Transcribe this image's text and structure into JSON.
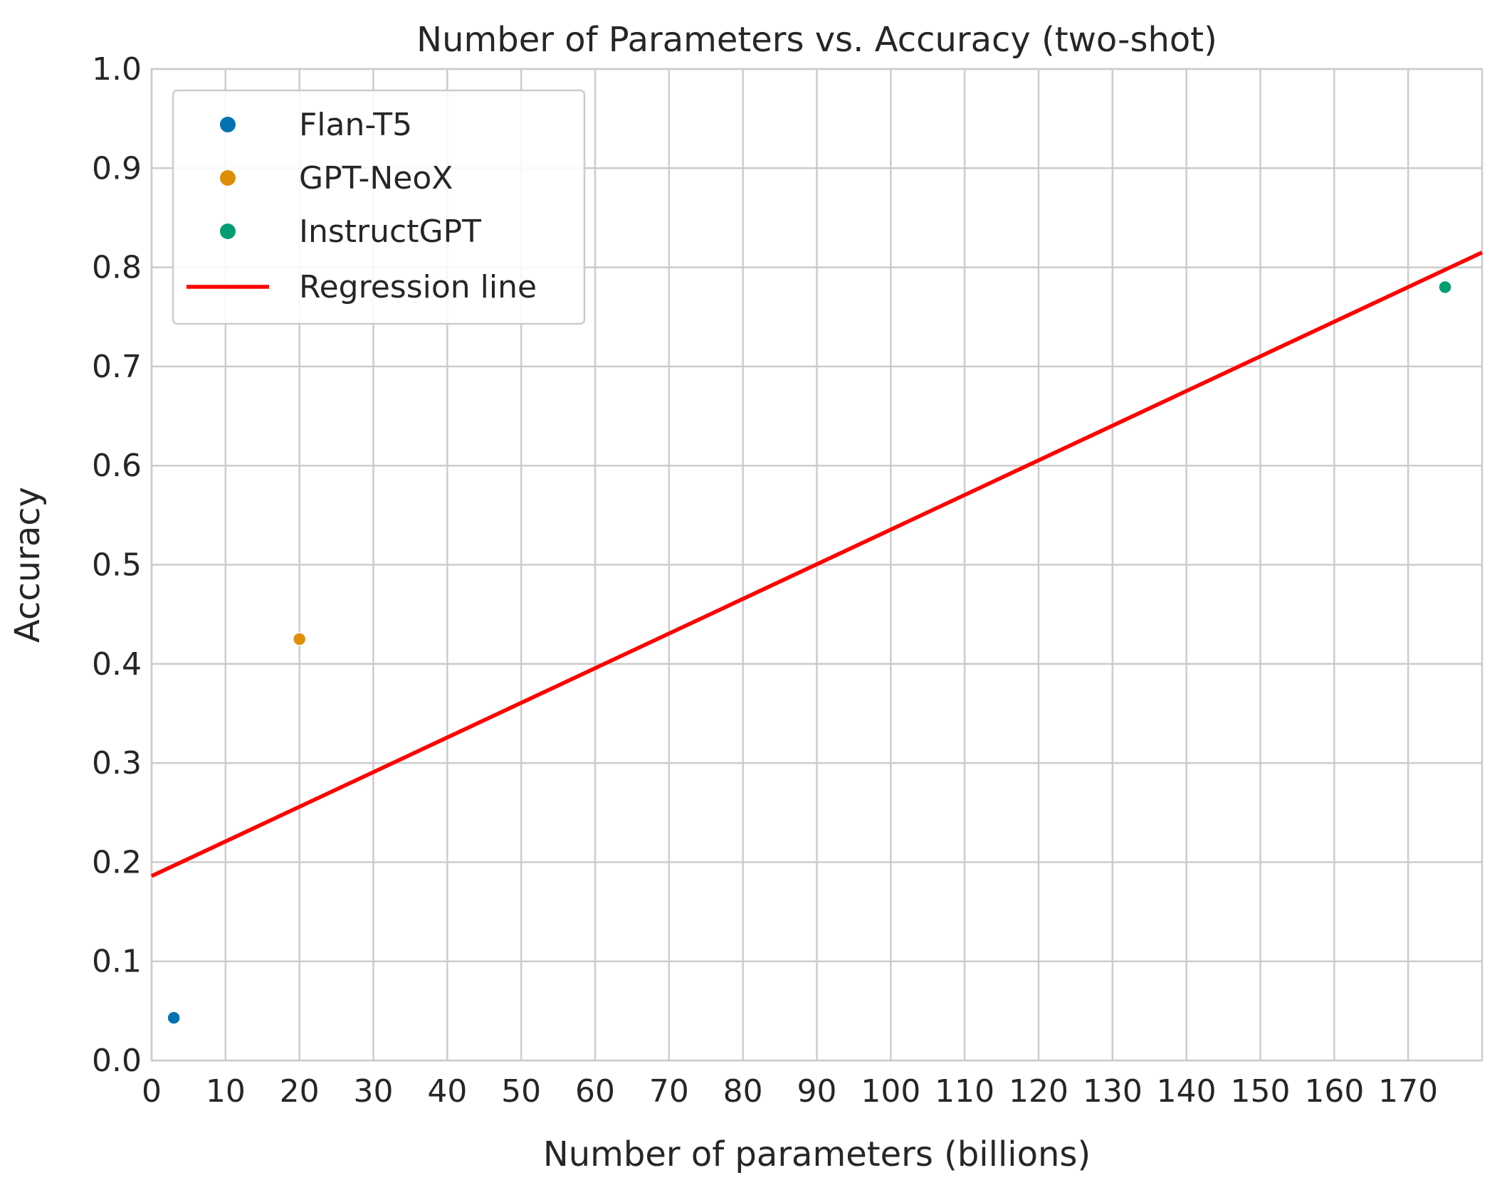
{
  "chart_data": {
    "type": "scatter",
    "title": "Number of Parameters vs. Accuracy (two-shot)",
    "xlabel": "Number of parameters (billions)",
    "ylabel": "Accuracy",
    "xlim": [
      0,
      180
    ],
    "ylim": [
      0,
      1.0
    ],
    "xticks": [
      0,
      10,
      20,
      30,
      40,
      50,
      60,
      70,
      80,
      90,
      100,
      110,
      120,
      130,
      140,
      150,
      160,
      170
    ],
    "xtick_labels": [
      "0",
      "10",
      "20",
      "30",
      "40",
      "50",
      "60",
      "70",
      "80",
      "90",
      "100",
      "110",
      "120",
      "130",
      "140",
      "150",
      "160",
      "170"
    ],
    "yticks": [
      0.0,
      0.1,
      0.2,
      0.3,
      0.4,
      0.5,
      0.6,
      0.7,
      0.8,
      0.9,
      1.0
    ],
    "ytick_labels": [
      "0.0",
      "0.1",
      "0.2",
      "0.3",
      "0.4",
      "0.5",
      "0.6",
      "0.7",
      "0.8",
      "0.9",
      "1.0"
    ],
    "grid": true,
    "legend_position": "top-left",
    "series": [
      {
        "name": "Flan-T5",
        "color": "#0173b2",
        "x": [
          3
        ],
        "y": [
          0.043
        ]
      },
      {
        "name": "GPT-NeoX",
        "color": "#de8f05",
        "x": [
          20
        ],
        "y": [
          0.425
        ]
      },
      {
        "name": "InstructGPT",
        "color": "#029e73",
        "x": [
          175
        ],
        "y": [
          0.78
        ]
      }
    ],
    "regression_line": {
      "name": "Regression line",
      "color": "#ff0000",
      "x": [
        0,
        180
      ],
      "y": [
        0.186,
        0.815
      ]
    }
  }
}
